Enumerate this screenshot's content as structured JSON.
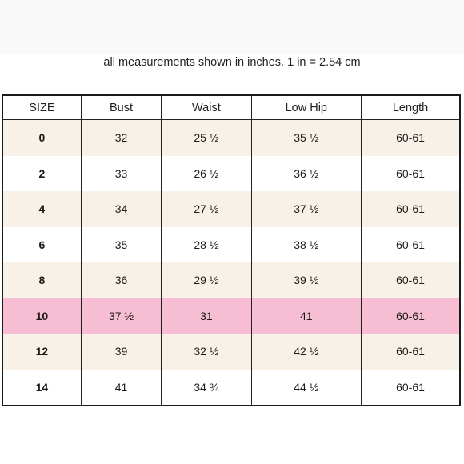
{
  "caption": "all measurements shown in inches. 1 in = 2.54 cm",
  "headers": [
    "SIZE",
    "Bust",
    "Waist",
    "Low Hip",
    "Length"
  ],
  "rows": [
    {
      "size": "0",
      "bust": "32",
      "waist": "25 ½",
      "low_hip": "35 ½",
      "length": "60-61"
    },
    {
      "size": "2",
      "bust": "33",
      "waist": "26 ½",
      "low_hip": "36 ½",
      "length": "60-61"
    },
    {
      "size": "4",
      "bust": "34",
      "waist": "27 ½",
      "low_hip": "37 ½",
      "length": "60-61"
    },
    {
      "size": "6",
      "bust": "35",
      "waist": "28 ½",
      "low_hip": "38 ½",
      "length": "60-61"
    },
    {
      "size": "8",
      "bust": "36",
      "waist": "29 ½",
      "low_hip": "39 ½",
      "length": "60-61"
    },
    {
      "size": "10",
      "bust": "37 ½",
      "waist": "31",
      "low_hip": "41",
      "length": "60-61"
    },
    {
      "size": "12",
      "bust": "39",
      "waist": "32 ½",
      "low_hip": "42 ½",
      "length": "60-61"
    },
    {
      "size": "14",
      "bust": "41",
      "waist": "34 ¾",
      "low_hip": "44 ½",
      "length": "60-61"
    }
  ],
  "highlighted_size": "10",
  "colors": {
    "row_shade": "#f8f1e8",
    "highlight": "#f7bdd2",
    "border": "#1a1a1a"
  }
}
